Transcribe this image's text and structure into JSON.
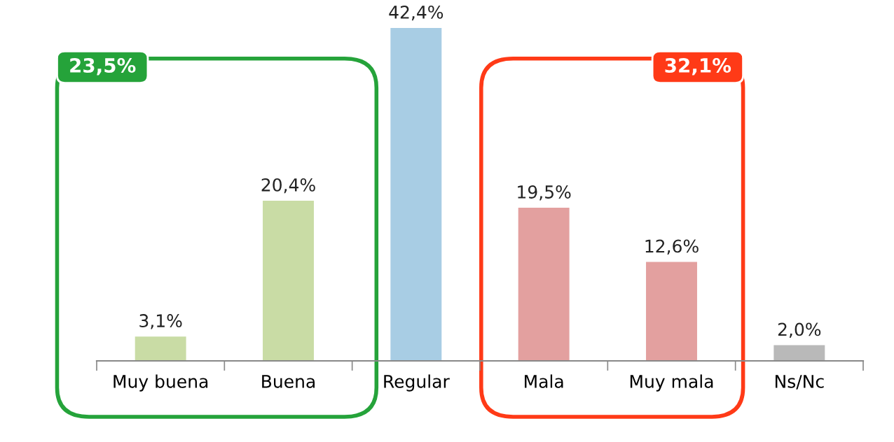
{
  "chart_data": {
    "type": "bar",
    "categories": [
      "Muy buena",
      "Buena",
      "Regular",
      "Mala",
      "Muy mala",
      "Ns/Nc"
    ],
    "values": [
      3.1,
      20.4,
      42.4,
      19.5,
      12.6,
      2.0
    ],
    "colors": [
      "#c9dca5",
      "#c9dca5",
      "#a8cde4",
      "#e3a09f",
      "#e3a09f",
      "#b9b9b9"
    ],
    "value_labels": [
      "3,1%",
      "20,4%",
      "42,4%",
      "19,5%",
      "12,6%",
      "2,0%"
    ],
    "annotations": [
      "23,5%",
      "32,1%"
    ],
    "grid": false,
    "legend": false
  }
}
